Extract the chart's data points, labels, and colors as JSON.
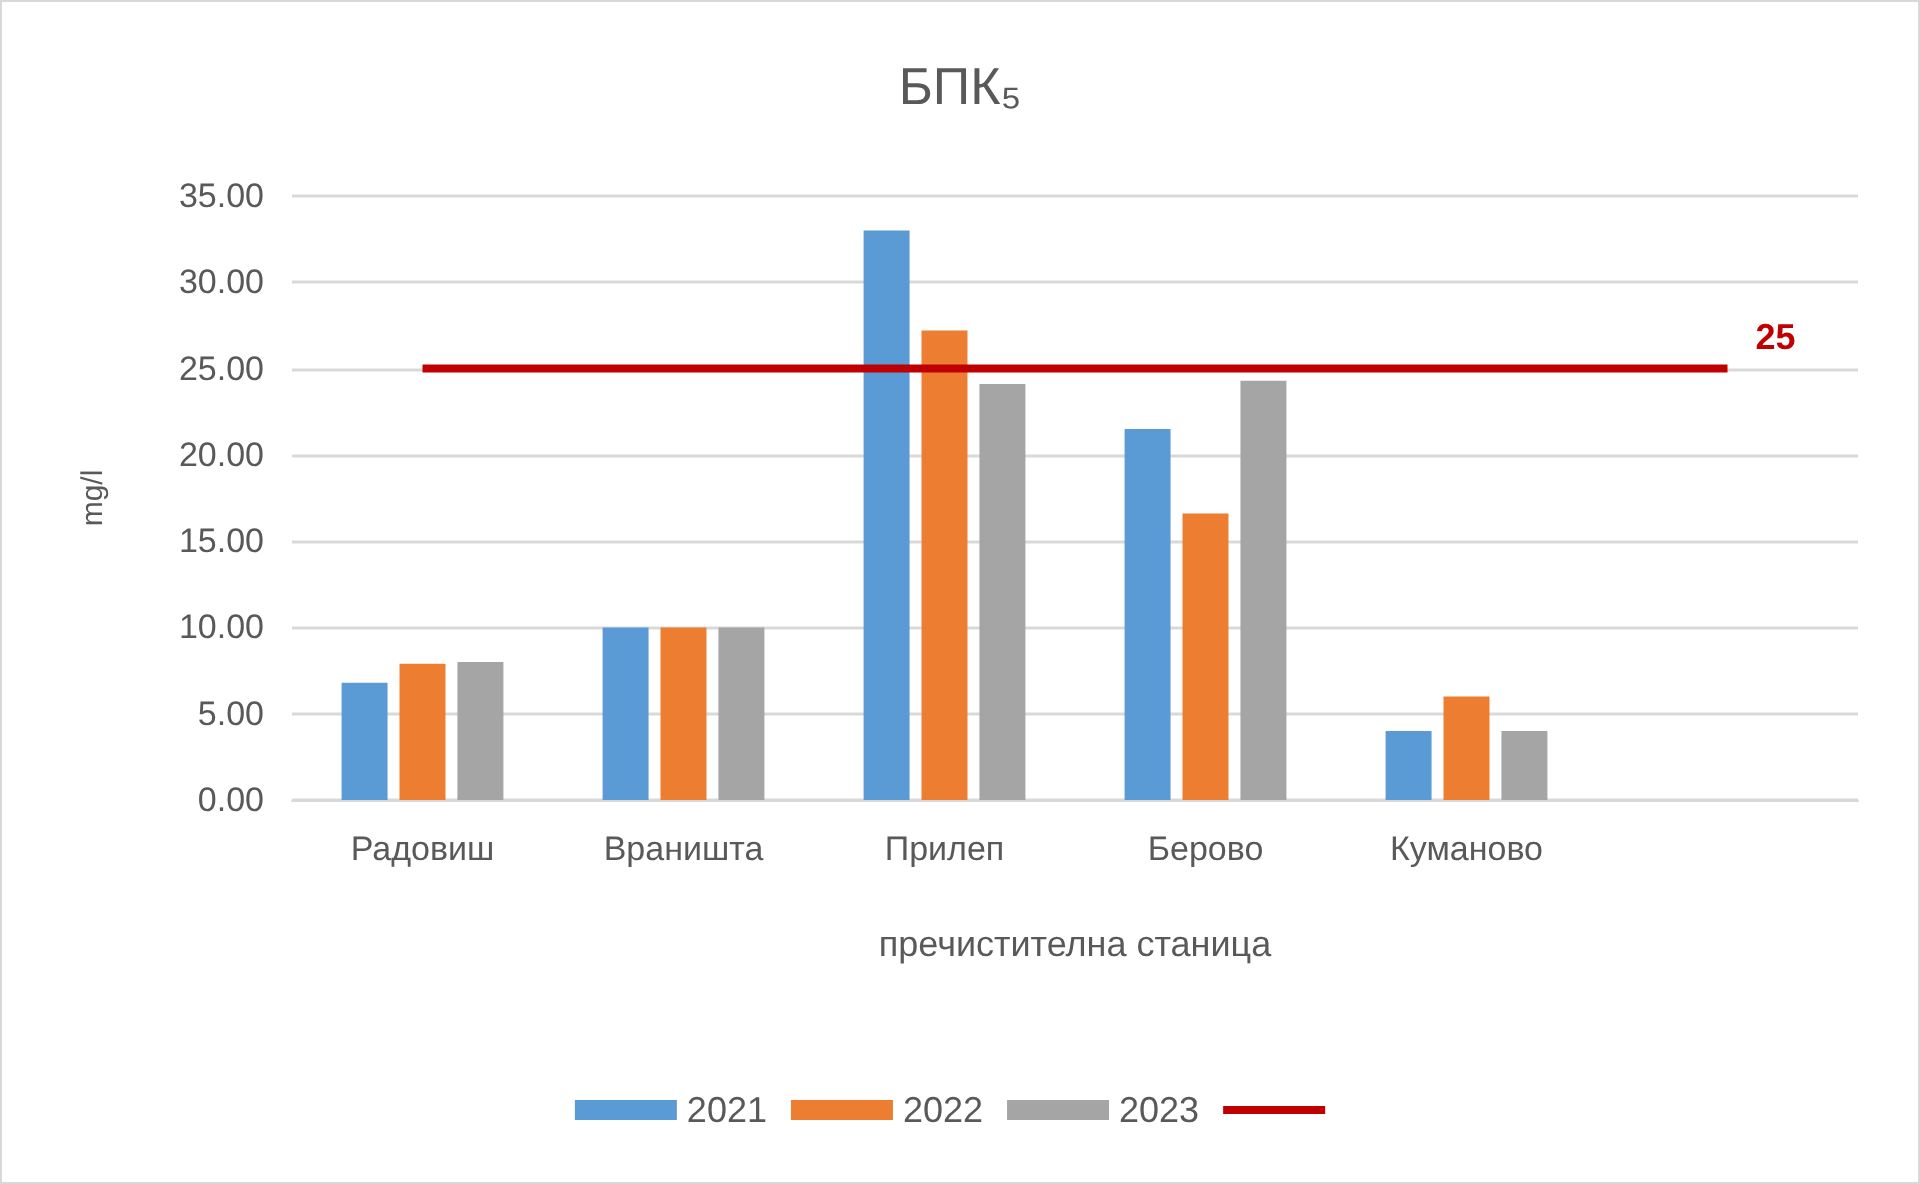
{
  "chart_data": {
    "type": "bar",
    "title": "БПК₅",
    "xlabel": "пречистителна станица",
    "ylabel": "mg/l",
    "categories": [
      "Радовиш",
      "Враништа",
      "Прилеп",
      "Берово",
      "Куманово",
      null
    ],
    "series": [
      {
        "name": "2021",
        "color": "#5b9bd5",
        "values": [
          6.8,
          10.0,
          33.0,
          21.5,
          4.0,
          null
        ]
      },
      {
        "name": "2022",
        "color": "#ed7d31",
        "values": [
          7.9,
          10.0,
          27.2,
          16.6,
          6.0,
          null
        ]
      },
      {
        "name": "2023",
        "color": "#a5a5a5",
        "values": [
          8.0,
          10.0,
          24.1,
          24.3,
          4.0,
          null
        ]
      },
      {
        "type": "line",
        "color": "#c00000",
        "values": [
          25,
          25,
          25,
          25,
          25,
          25
        ],
        "value_labels": [
          null,
          null,
          null,
          null,
          null,
          "25"
        ]
      }
    ],
    "ylim": [
      0,
      35
    ],
    "yticks": [
      {
        "value": 0,
        "label": "0.00"
      },
      {
        "value": 5,
        "label": "5.00"
      },
      {
        "value": 10,
        "label": "10.00"
      },
      {
        "value": 15,
        "label": "15.00"
      },
      {
        "value": 20,
        "label": "20.00"
      },
      {
        "value": 25,
        "label": "25.00"
      },
      {
        "value": 30,
        "label": "30.00"
      },
      {
        "value": 35,
        "label": "35.00"
      }
    ],
    "grid": "y",
    "legend": "bottom",
    "marker": "none",
    "line_style": "solid"
  }
}
